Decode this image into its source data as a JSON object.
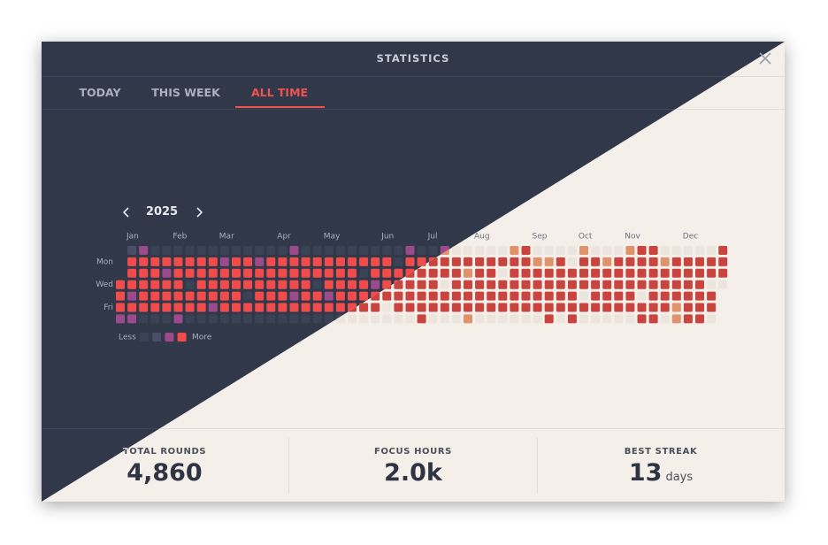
{
  "header": {
    "title": "STATISTICS"
  },
  "tabs": [
    "TODAY",
    "THIS WEEK",
    "ALL TIME"
  ],
  "heatmap": {
    "year": 2025,
    "months": [
      "Jan",
      "Feb",
      "Mar",
      "Apr",
      "May",
      "Jun",
      "Jul",
      "Aug",
      "Sep",
      "Oct",
      "Nov",
      "Dec"
    ],
    "day_labels": [
      "Mon",
      "Wed",
      "Fri"
    ],
    "legend": {
      "less": "Less",
      "more": "More"
    },
    "weeks": [
      [
        null,
        null,
        null,
        3,
        3,
        3,
        2
      ],
      [
        1,
        3,
        3,
        3,
        2,
        3,
        2
      ],
      [
        2,
        3,
        3,
        3,
        3,
        3,
        0
      ],
      [
        0,
        3,
        3,
        3,
        3,
        3,
        0
      ],
      [
        0,
        3,
        2,
        3,
        3,
        3,
        0
      ],
      [
        0,
        3,
        3,
        3,
        3,
        3,
        2
      ],
      [
        0,
        3,
        3,
        0,
        3,
        3,
        0
      ],
      [
        0,
        3,
        3,
        3,
        3,
        3,
        0
      ],
      [
        0,
        3,
        3,
        3,
        3,
        2,
        0
      ],
      [
        0,
        2,
        3,
        3,
        3,
        3,
        0
      ],
      [
        0,
        3,
        3,
        3,
        3,
        3,
        0
      ],
      [
        0,
        3,
        3,
        3,
        0,
        3,
        0
      ],
      [
        0,
        2,
        3,
        3,
        3,
        3,
        0
      ],
      [
        0,
        3,
        3,
        3,
        3,
        3,
        0
      ],
      [
        0,
        3,
        3,
        3,
        3,
        3,
        0
      ],
      [
        2,
        3,
        3,
        3,
        2,
        3,
        0
      ],
      [
        0,
        3,
        3,
        3,
        3,
        3,
        0
      ],
      [
        0,
        3,
        3,
        0,
        3,
        3,
        0
      ],
      [
        0,
        3,
        3,
        3,
        2,
        3,
        0
      ],
      [
        0,
        3,
        3,
        3,
        3,
        3,
        0
      ],
      [
        0,
        3,
        3,
        3,
        3,
        3,
        0
      ],
      [
        0,
        3,
        0,
        3,
        3,
        3,
        0
      ],
      [
        0,
        3,
        3,
        2,
        3,
        3,
        0
      ],
      [
        0,
        3,
        3,
        3,
        3,
        0,
        0
      ],
      [
        0,
        0,
        3,
        3,
        3,
        3,
        0
      ],
      [
        2,
        3,
        3,
        3,
        3,
        3,
        0
      ],
      [
        0,
        3,
        3,
        3,
        3,
        3,
        3
      ],
      [
        0,
        3,
        3,
        3,
        3,
        3,
        0
      ],
      [
        2,
        3,
        3,
        0,
        3,
        3,
        0
      ],
      [
        0,
        3,
        3,
        3,
        3,
        3,
        0
      ],
      [
        0,
        3,
        2,
        3,
        3,
        3,
        2
      ],
      [
        0,
        3,
        3,
        3,
        3,
        3,
        0
      ],
      [
        0,
        3,
        3,
        3,
        3,
        3,
        0
      ],
      [
        0,
        3,
        0,
        3,
        3,
        3,
        0
      ],
      [
        2,
        3,
        3,
        3,
        3,
        3,
        0
      ],
      [
        3,
        3,
        3,
        3,
        3,
        3,
        0
      ],
      [
        0,
        2,
        3,
        3,
        3,
        3,
        0
      ],
      [
        0,
        2,
        3,
        3,
        3,
        3,
        3
      ],
      [
        0,
        3,
        3,
        3,
        3,
        3,
        0
      ],
      [
        0,
        0,
        3,
        3,
        3,
        3,
        3
      ],
      [
        2,
        3,
        3,
        3,
        0,
        3,
        0
      ],
      [
        0,
        3,
        3,
        3,
        3,
        3,
        0
      ],
      [
        0,
        2,
        3,
        3,
        3,
        3,
        0
      ],
      [
        0,
        3,
        3,
        3,
        3,
        3,
        0
      ],
      [
        2,
        3,
        3,
        3,
        3,
        3,
        0
      ],
      [
        3,
        3,
        3,
        3,
        0,
        3,
        3
      ],
      [
        3,
        3,
        3,
        3,
        3,
        3,
        3
      ],
      [
        0,
        2,
        3,
        3,
        3,
        3,
        0
      ],
      [
        0,
        3,
        3,
        3,
        3,
        2,
        2
      ],
      [
        0,
        3,
        3,
        3,
        3,
        3,
        3
      ],
      [
        0,
        3,
        3,
        3,
        3,
        3,
        3
      ],
      [
        0,
        3,
        3,
        0,
        3,
        3,
        0
      ],
      [
        3,
        3,
        3,
        0,
        null,
        null,
        null
      ]
    ]
  },
  "stats": [
    {
      "label": "TOTAL ROUNDS",
      "value": "4,860"
    },
    {
      "label": "FOCUS HOURS",
      "value": "2.0k"
    },
    {
      "label": "BEST STREAK",
      "value": "13",
      "unit": "days"
    }
  ]
}
